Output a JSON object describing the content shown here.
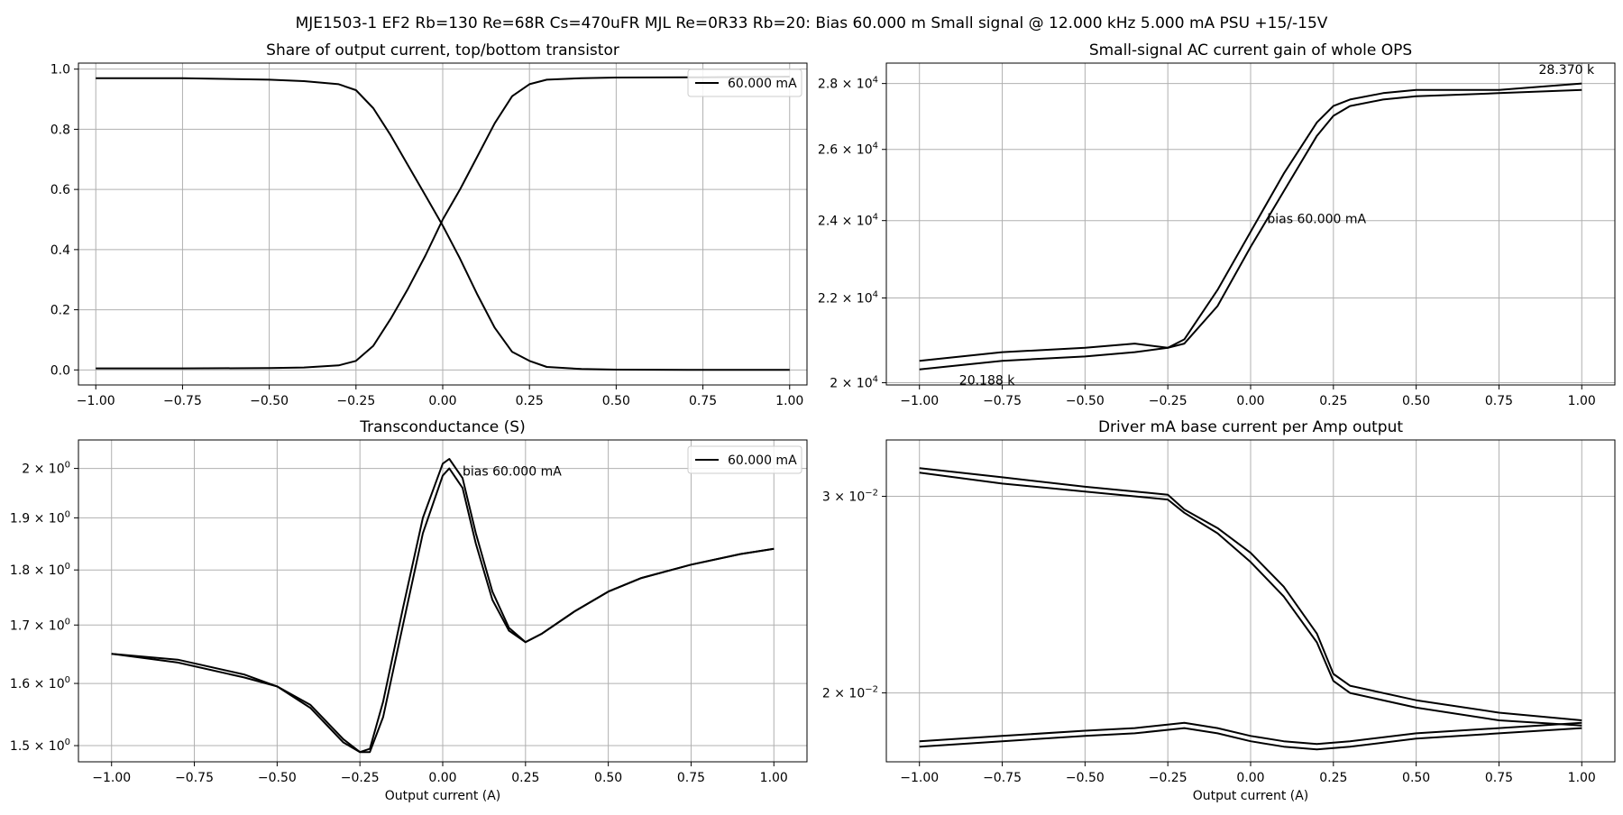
{
  "figure": {
    "suptitle": "MJE1503-1 EF2 Rb=130 Re=68R Cs=470uFR MJL Re=0R33 Rb=20: Bias 60.000 m Small signal @ 12.000 kHz 5.000 mA PSU +15/-15V"
  },
  "colors": {
    "line": "#000000",
    "grid": "#b0b0b0",
    "axes": "#000000",
    "background": "#ffffff"
  },
  "chart_data": [
    {
      "id": "share",
      "type": "line",
      "title": "Share of output current, top/bottom transistor",
      "xlabel": "",
      "ylabel": "",
      "xlim": [
        -1.05,
        1.05
      ],
      "ylim": [
        -0.05,
        1.02
      ],
      "yscale": "linear",
      "xticks": [
        -1.0,
        -0.75,
        -0.5,
        -0.25,
        0.0,
        0.25,
        0.5,
        0.75,
        1.0
      ],
      "xticklabels": [
        "−1.00",
        "−0.75",
        "−0.50",
        "−0.25",
        "0.00",
        "0.25",
        "0.50",
        "0.75",
        "1.00"
      ],
      "yticks": [
        0.0,
        0.2,
        0.4,
        0.6,
        0.8,
        1.0
      ],
      "yticklabels": [
        "0.0",
        "0.2",
        "0.4",
        "0.6",
        "0.8",
        "1.0"
      ],
      "grid": true,
      "legend": {
        "position": "top-right",
        "entries": [
          "60.000 mA"
        ]
      },
      "annotations": [],
      "series": [
        {
          "name": "60.000 mA",
          "x": [
            -1.0,
            -0.75,
            -0.5,
            -0.4,
            -0.3,
            -0.25,
            -0.2,
            -0.15,
            -0.1,
            -0.05,
            0.0,
            0.05,
            0.1,
            0.15,
            0.2,
            0.25,
            0.3,
            0.4,
            0.5,
            0.75,
            1.0
          ],
          "y": [
            0.97,
            0.97,
            0.965,
            0.96,
            0.95,
            0.93,
            0.87,
            0.78,
            0.68,
            0.58,
            0.48,
            0.37,
            0.25,
            0.14,
            0.06,
            0.03,
            0.01,
            0.003,
            0.001,
            0.0,
            0.0
          ]
        },
        {
          "name": "",
          "x": [
            -1.0,
            -0.75,
            -0.5,
            -0.4,
            -0.3,
            -0.25,
            -0.2,
            -0.15,
            -0.1,
            -0.05,
            0.0,
            0.05,
            0.1,
            0.15,
            0.2,
            0.25,
            0.3,
            0.4,
            0.5,
            0.75,
            1.0
          ],
          "y": [
            0.005,
            0.005,
            0.006,
            0.008,
            0.015,
            0.03,
            0.08,
            0.17,
            0.27,
            0.38,
            0.5,
            0.6,
            0.71,
            0.82,
            0.91,
            0.95,
            0.965,
            0.97,
            0.972,
            0.973,
            0.975
          ]
        }
      ]
    },
    {
      "id": "gain",
      "type": "line",
      "title": "Small-signal AC current gain of whole OPS",
      "xlabel": "",
      "ylabel": "",
      "xlim": [
        -1.1,
        1.1
      ],
      "ylim": [
        19950,
        28650
      ],
      "yscale": "log",
      "xticks": [
        -1.0,
        -0.75,
        -0.5,
        -0.25,
        0.0,
        0.25,
        0.5,
        0.75,
        1.0
      ],
      "xticklabels": [
        "−1.00",
        "−0.75",
        "−0.50",
        "−0.25",
        "0.00",
        "0.25",
        "0.50",
        "0.75",
        "1.00"
      ],
      "yticks": [
        20000,
        22000,
        24000,
        26000,
        28000
      ],
      "yticklabels": [
        "2 × 10⁴",
        "2.2 × 10⁴",
        "2.4 × 10⁴",
        "2.6 × 10⁴",
        "2.8 × 10⁴"
      ],
      "grid": true,
      "legend": null,
      "annotations": [
        {
          "text": "28.370 k",
          "x": 0.87,
          "y": 28450
        },
        {
          "text": "bias 60.000 mA",
          "x": 0.05,
          "y": 24050
        },
        {
          "text": "20.188 k",
          "x": -0.88,
          "y": 20060
        }
      ],
      "series": [
        {
          "name": "",
          "x": [
            -1.0,
            -0.75,
            -0.5,
            -0.35,
            -0.25,
            -0.2,
            -0.1,
            0.0,
            0.1,
            0.2,
            0.25,
            0.3,
            0.4,
            0.5,
            0.75,
            1.0
          ],
          "y": [
            20500,
            20700,
            20800,
            20900,
            20800,
            21000,
            22200,
            23700,
            25300,
            26800,
            27300,
            27500,
            27700,
            27800,
            27800,
            28000
          ]
        },
        {
          "name": "",
          "x": [
            -1.0,
            -0.75,
            -0.5,
            -0.35,
            -0.25,
            -0.2,
            -0.1,
            0.0,
            0.1,
            0.2,
            0.25,
            0.3,
            0.4,
            0.5,
            0.75,
            1.0
          ],
          "y": [
            20300,
            20500,
            20600,
            20700,
            20800,
            20900,
            21800,
            23300,
            24800,
            26400,
            27000,
            27300,
            27500,
            27600,
            27700,
            27800
          ]
        }
      ]
    },
    {
      "id": "gm",
      "type": "line",
      "title": "Transconductance (S)",
      "xlabel": "Output current (A)",
      "ylabel": "",
      "xlim": [
        -1.1,
        1.1
      ],
      "ylim": [
        1.475,
        2.06
      ],
      "yscale": "log",
      "xticks": [
        -1.0,
        -0.75,
        -0.5,
        -0.25,
        0.0,
        0.25,
        0.5,
        0.75,
        1.0
      ],
      "xticklabels": [
        "−1.00",
        "−0.75",
        "−0.50",
        "−0.25",
        "0.00",
        "0.25",
        "0.50",
        "0.75",
        "1.00"
      ],
      "yticks": [
        1.5,
        1.6,
        1.7,
        1.8,
        1.9,
        2.0
      ],
      "yticklabels": [
        "1.5 × 10⁰",
        "1.6 × 10⁰",
        "1.7 × 10⁰",
        "1.8 × 10⁰",
        "1.9 × 10⁰",
        "2 × 10⁰"
      ],
      "grid": true,
      "legend": {
        "position": "top-right",
        "entries": [
          "60.000 mA"
        ]
      },
      "annotations": [
        {
          "text": "bias 60.000 mA",
          "x": 0.06,
          "y": 1.995
        }
      ],
      "series": [
        {
          "name": "60.000 mA",
          "x": [
            -1.0,
            -0.8,
            -0.6,
            -0.5,
            -0.4,
            -0.3,
            -0.25,
            -0.22,
            -0.18,
            -0.12,
            -0.06,
            0.0,
            0.02,
            0.06,
            0.1,
            0.15,
            0.2,
            0.25,
            0.3,
            0.4,
            0.5,
            0.6,
            0.75,
            0.9,
            1.0
          ],
          "y": [
            1.65,
            1.64,
            1.615,
            1.595,
            1.565,
            1.51,
            1.49,
            1.495,
            1.57,
            1.73,
            1.9,
            2.01,
            2.02,
            1.98,
            1.87,
            1.76,
            1.695,
            1.67,
            1.685,
            1.725,
            1.76,
            1.785,
            1.81,
            1.83,
            1.84
          ]
        },
        {
          "name": "",
          "x": [
            -1.0,
            -0.8,
            -0.6,
            -0.5,
            -0.4,
            -0.3,
            -0.25,
            -0.22,
            -0.18,
            -0.12,
            -0.06,
            0.0,
            0.02,
            0.06,
            0.1,
            0.15,
            0.2,
            0.25,
            0.3,
            0.4,
            0.5,
            0.6,
            0.75,
            0.9,
            1.0
          ],
          "y": [
            1.65,
            1.635,
            1.61,
            1.595,
            1.56,
            1.505,
            1.49,
            1.49,
            1.545,
            1.7,
            1.87,
            1.985,
            2.0,
            1.96,
            1.85,
            1.745,
            1.69,
            1.67,
            1.685,
            1.725,
            1.76,
            1.785,
            1.81,
            1.83,
            1.84
          ]
        }
      ]
    },
    {
      "id": "driver",
      "type": "line",
      "title": "Driver mA base current per Amp output",
      "xlabel": "Output current (A)",
      "ylabel": "",
      "xlim": [
        -1.1,
        1.1
      ],
      "ylim": [
        0.01735,
        0.0337
      ],
      "yscale": "log",
      "xticks": [
        -1.0,
        -0.75,
        -0.5,
        -0.25,
        0.0,
        0.25,
        0.5,
        0.75,
        1.0
      ],
      "xticklabels": [
        "−1.00",
        "−0.75",
        "−0.50",
        "−0.25",
        "0.00",
        "0.25",
        "0.50",
        "0.75",
        "1.00"
      ],
      "yticks": [
        0.02,
        0.03
      ],
      "yticklabels": [
        "2 × 10⁻²",
        "3 × 10⁻²"
      ],
      "grid": true,
      "legend": null,
      "annotations": [],
      "series": [
        {
          "name": "",
          "x": [
            -1.0,
            -0.75,
            -0.5,
            -0.25,
            -0.2,
            -0.1,
            0.0,
            0.1,
            0.2,
            0.25,
            0.3,
            0.5,
            0.75,
            1.0
          ],
          "y": [
            0.0315,
            0.0308,
            0.0303,
            0.0298,
            0.029,
            0.0278,
            0.0262,
            0.0244,
            0.0222,
            0.0205,
            0.02,
            0.0194,
            0.0189,
            0.0187
          ]
        },
        {
          "name": "",
          "x": [
            -1.0,
            -0.75,
            -0.5,
            -0.25,
            -0.2,
            -0.1,
            0.0,
            0.1,
            0.2,
            0.25,
            0.3,
            0.5,
            0.75,
            1.0
          ],
          "y": [
            0.0318,
            0.0312,
            0.0306,
            0.0301,
            0.0292,
            0.0281,
            0.0267,
            0.0249,
            0.0226,
            0.0208,
            0.0203,
            0.0197,
            0.0192,
            0.0189
          ]
        },
        {
          "name": "",
          "x": [
            -1.0,
            -0.75,
            -0.5,
            -0.35,
            -0.2,
            -0.1,
            0.0,
            0.1,
            0.2,
            0.3,
            0.5,
            0.75,
            1.0
          ],
          "y": [
            0.0179,
            0.0181,
            0.0183,
            0.0184,
            0.0186,
            0.0184,
            0.0181,
            0.0179,
            0.0178,
            0.0179,
            0.0182,
            0.0184,
            0.0186
          ]
        },
        {
          "name": "",
          "x": [
            -1.0,
            -0.75,
            -0.5,
            -0.35,
            -0.2,
            -0.1,
            0.0,
            0.1,
            0.2,
            0.3,
            0.5,
            0.75,
            1.0
          ],
          "y": [
            0.0181,
            0.0183,
            0.0185,
            0.0186,
            0.0188,
            0.0186,
            0.0183,
            0.0181,
            0.018,
            0.0181,
            0.0184,
            0.0186,
            0.0188
          ]
        }
      ]
    }
  ]
}
